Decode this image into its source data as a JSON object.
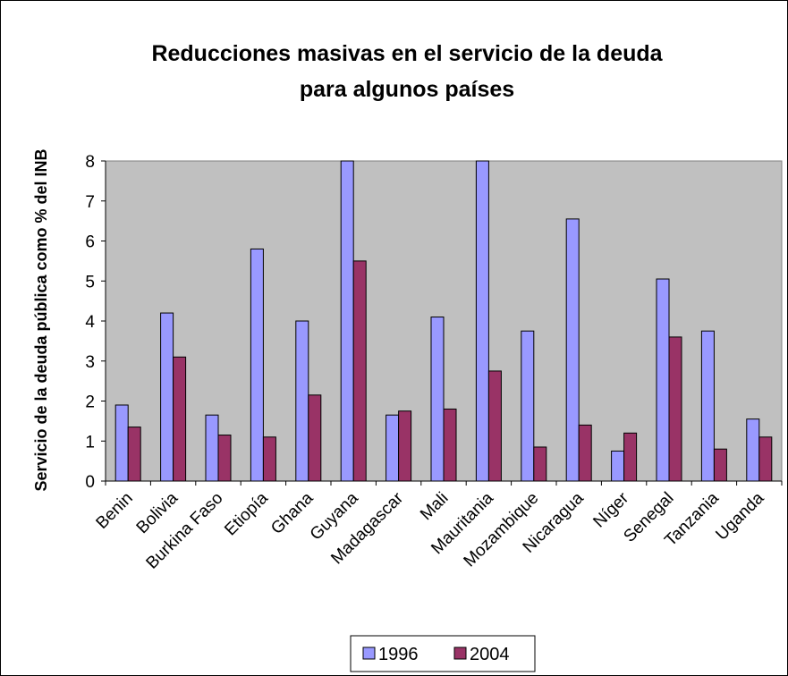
{
  "chart_data": {
    "type": "bar",
    "title_line1": "Reducciones masivas en el servicio de la deuda",
    "title_line2": "para algunos países",
    "xlabel": "",
    "ylabel": "Servicio de la deuda pública como % del INB",
    "ylim": [
      0,
      8
    ],
    "yticks": [
      "0",
      "1",
      "2",
      "3",
      "4",
      "5",
      "6",
      "7",
      "8"
    ],
    "grid": false,
    "plot_background": "#c0c0c0",
    "legend_position": "bottom",
    "categories": [
      "Benin",
      "Bolivia",
      "Burkina Faso",
      "Etiopía",
      "Ghana",
      "Guyana",
      "Madagascar",
      "Mali",
      "Mauritania",
      "Mozambique",
      "Nicaragua",
      "Níger",
      "Senegal",
      "Tanzania",
      "Uganda"
    ],
    "series": [
      {
        "name": "1996",
        "color": "#9999ff",
        "values": [
          1.9,
          4.2,
          1.65,
          5.8,
          4.0,
          8.0,
          1.65,
          4.1,
          8.0,
          3.75,
          6.55,
          0.75,
          5.05,
          3.75,
          1.55
        ]
      },
      {
        "name": "2004",
        "color": "#993366",
        "values": [
          1.35,
          3.1,
          1.15,
          1.1,
          2.15,
          5.5,
          1.75,
          1.8,
          2.75,
          0.85,
          1.4,
          1.2,
          3.6,
          0.8,
          1.1
        ]
      }
    ]
  }
}
